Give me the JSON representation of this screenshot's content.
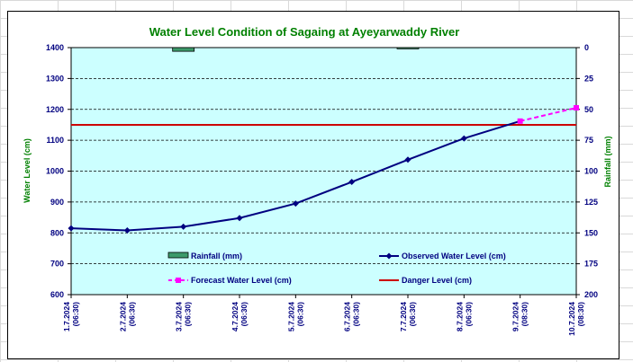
{
  "chart_data": {
    "type": "line",
    "title": "Water Level Condition of Sagaing at Ayeyarwaddy River",
    "ylabel": "Water Level (cm)",
    "y2label": "Rainfall (mm)",
    "ylim": [
      600,
      1400
    ],
    "yticks": [
      "600",
      "700",
      "800",
      "900",
      "1000",
      "1100",
      "1200",
      "1300",
      "1400"
    ],
    "y2lim": [
      200,
      0
    ],
    "y2ticks": [
      "0",
      "25",
      "50",
      "75",
      "100",
      "125",
      "150",
      "175",
      "200"
    ],
    "categories": [
      [
        "1.7.2024",
        "(06:30)"
      ],
      [
        "2.7.2024",
        "(06:30)"
      ],
      [
        "3.7.2024",
        "(06:30)"
      ],
      [
        "4.7.2024",
        "(06:30)"
      ],
      [
        "5.7.2024",
        "(06:30)"
      ],
      [
        "6.7.2024",
        "(06:30)"
      ],
      [
        "7.7.2024",
        "(06:30)"
      ],
      [
        "8.7.2024",
        "(06:30)"
      ],
      [
        "9.7.2024",
        "(08:30)"
      ],
      [
        "10.7.2024",
        "(08:30)"
      ]
    ],
    "series": [
      {
        "name": "Rainfall (mm)",
        "kind": "bar",
        "axis": "right",
        "color": "#3c9a6a",
        "values": [
          null,
          null,
          3,
          null,
          null,
          null,
          1,
          null,
          null,
          null
        ]
      },
      {
        "name": "Observed Water Level (cm)",
        "kind": "line",
        "axis": "left",
        "color": "#000080",
        "values": [
          815,
          808,
          820,
          848,
          895,
          965,
          1037,
          1106,
          1162,
          null
        ]
      },
      {
        "name": "Forecast Water Level (cm)",
        "kind": "line-dashed",
        "axis": "left",
        "color": "#ff00ff",
        "values": [
          null,
          null,
          null,
          null,
          null,
          null,
          null,
          null,
          1162,
          1205
        ]
      },
      {
        "name": "Danger Level (cm)",
        "kind": "hline",
        "axis": "left",
        "color": "#cc0000",
        "value": 1150
      }
    ],
    "grid": true,
    "plot_background": "#ccffff",
    "legend": "inside-bottom"
  }
}
